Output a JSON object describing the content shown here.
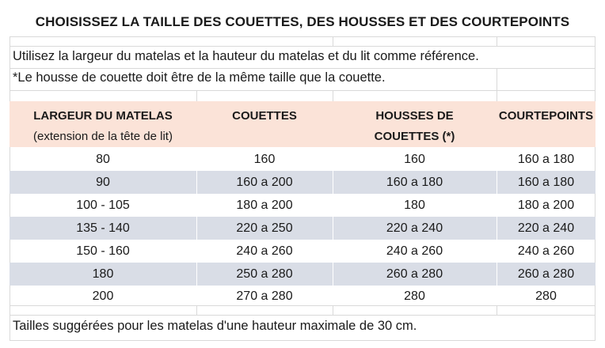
{
  "title": "CHOISISSEZ LA TAILLE DES COUETTES, DES HOUSSES ET DES COURTEPOINTS",
  "notes": [
    "Utilisez la largeur du matelas et la hauteur du matelas et du lit comme référence.",
    "*Le housse de couette doit être de la même taille que la couette."
  ],
  "headers": {
    "col1_line1": "LARGEUR DU MATELAS",
    "col1_line2": "(extension de la tête de lit)",
    "col2": "COUETTES",
    "col3_line1": "HOUSSES DE",
    "col3_line2": "COUETTES (*)",
    "col4": "COURTEPOINTS"
  },
  "rows": [
    [
      "80",
      "160",
      "160",
      "160 a 180"
    ],
    [
      "90",
      "160 a 200",
      "160 a 180",
      "160 a 180"
    ],
    [
      "100 - 105",
      "180 a 200",
      "180",
      "180 a 200"
    ],
    [
      "135 - 140",
      "220 a 250",
      "220 a 240",
      "220 a 240"
    ],
    [
      "150 - 160",
      "240 a 260",
      "240 a 260",
      "240 a 260"
    ],
    [
      "180",
      "250 a 280",
      "260 a 280",
      "260 a 280"
    ],
    [
      "200",
      "270 a 280",
      "280",
      "280"
    ]
  ],
  "footer": "Tailles suggérées pour les matelas d'une hauteur maximale de 30 cm.",
  "colors": {
    "header_bg": "#fbe3d8",
    "row_shade": "#d9dde6"
  }
}
